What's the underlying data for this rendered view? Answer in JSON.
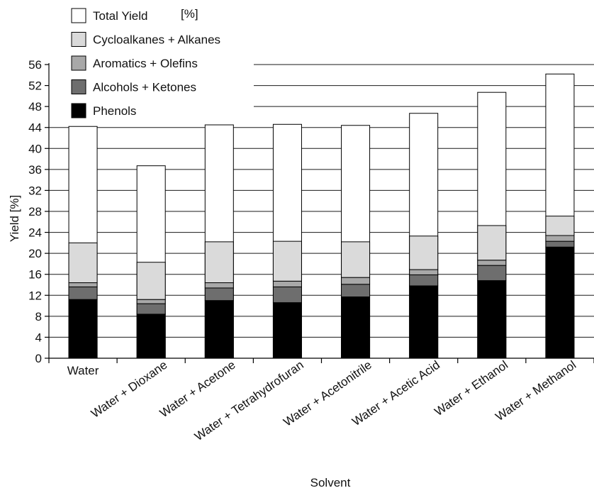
{
  "chart_data": {
    "type": "bar",
    "stacked": true,
    "xlabel": "Solvent",
    "ylabel": "Yield [%]",
    "ylim": [
      0,
      56
    ],
    "yticks": [
      0,
      4,
      8,
      12,
      16,
      20,
      24,
      28,
      32,
      36,
      40,
      44,
      48,
      52,
      56
    ],
    "grid": "horizontal",
    "legend_position": "top-left",
    "categories": [
      "Water",
      "Water + Dioxane",
      "Water + Acetone",
      "Water + Tetrahydrofuran",
      "Water + Acetonitrile",
      "Water + Acetic Acid",
      "Water + Ethanol",
      "Water + Methanol"
    ],
    "series": [
      {
        "name": "Phenols",
        "color": "#000000",
        "values": [
          11.2,
          8.4,
          11.0,
          10.6,
          11.7,
          13.8,
          14.8,
          21.2
        ]
      },
      {
        "name": "Alcohols + Ketones",
        "color": "#6e6e6e",
        "values": [
          2.4,
          2.0,
          2.4,
          3.0,
          2.4,
          2.1,
          2.9,
          1.1
        ]
      },
      {
        "name": "Aromatics + Olefins",
        "color": "#a8a8a8",
        "values": [
          0.8,
          0.8,
          1.0,
          1.1,
          1.3,
          1.0,
          1.0,
          1.1
        ]
      },
      {
        "name": "Cycloalkanes + Alkanes",
        "color": "#dadada",
        "values": [
          7.6,
          7.1,
          7.8,
          7.6,
          6.8,
          6.4,
          6.6,
          3.7
        ]
      }
    ],
    "total": {
      "name": "Total Yield",
      "unit_label": "[%]",
      "color": "#ffffff",
      "values": [
        44.2,
        36.7,
        44.5,
        44.6,
        44.4,
        46.7,
        50.7,
        54.2
      ]
    }
  }
}
